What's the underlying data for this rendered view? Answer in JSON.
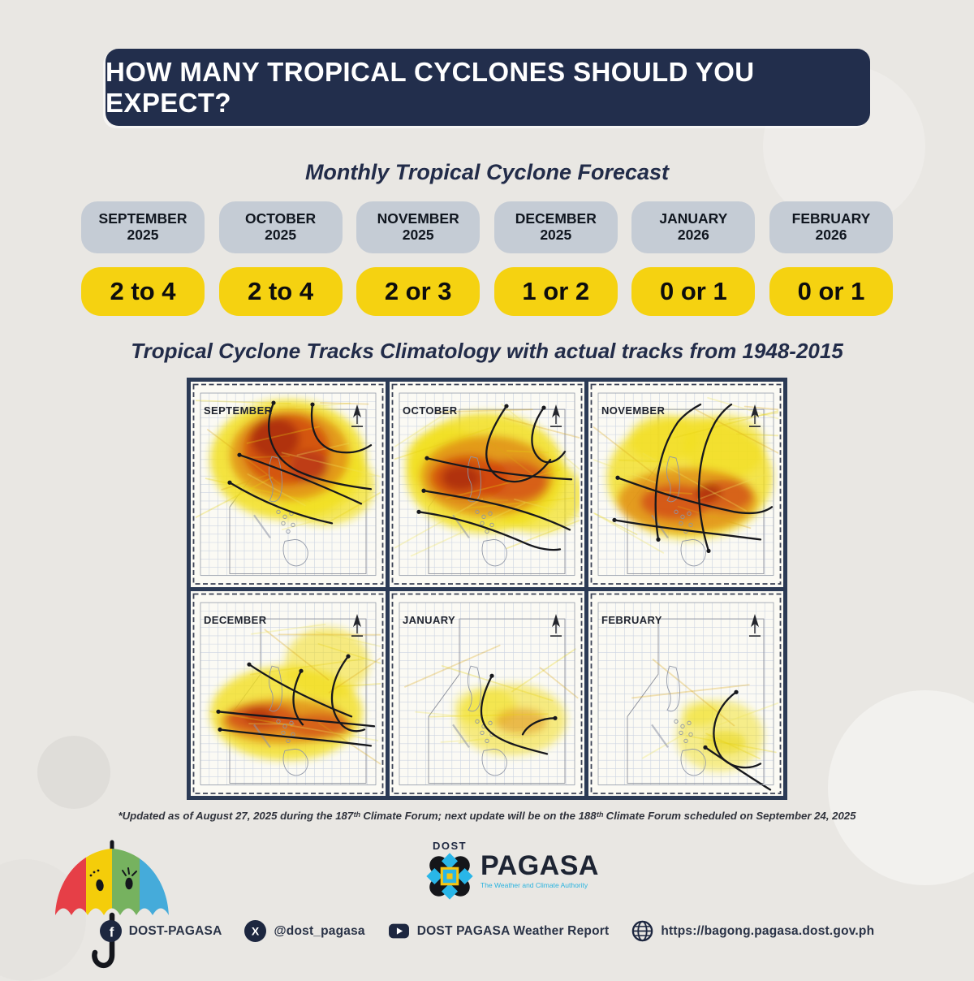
{
  "header": {
    "title": "HOW MANY TROPICAL CYCLONES SHOULD YOU EXPECT?",
    "bg_color": "#222e4c",
    "text_color": "#ffffff"
  },
  "forecast": {
    "subtitle": "Monthly Tropical Cyclone Forecast",
    "month_pill_color": "#c5ccd5",
    "value_pill_color": "#f5d211",
    "months": [
      {
        "month": "SEPTEMBER",
        "year": "2025",
        "value": "2 to 4"
      },
      {
        "month": "OCTOBER",
        "year": "2025",
        "value": "2 to 4"
      },
      {
        "month": "NOVEMBER",
        "year": "2025",
        "value": "2 or 3"
      },
      {
        "month": "DECEMBER",
        "year": "2025",
        "value": "1 or 2"
      },
      {
        "month": "JANUARY",
        "year": "2026",
        "value": "0 or 1"
      },
      {
        "month": "FEBRUARY",
        "year": "2026",
        "value": "0 or 1"
      }
    ]
  },
  "climatology": {
    "title": "Tropical Cyclone Tracks Climatology with actual tracks from 1948-2015",
    "footnote": "*Updated as of August 27, 2025 during the 187ᵗʰ Climate Forum; next update will be on the 188ᵗʰ Climate Forum scheduled on September 24, 2025",
    "frame_color": "#2b3a55",
    "maps": [
      {
        "label": "SEPTEMBER",
        "blobs": [
          [
            120,
            96,
            96,
            74,
            "#f2df1e",
            0.85
          ],
          [
            165,
            128,
            62,
            48,
            "#f2df1e",
            0.7
          ],
          [
            122,
            90,
            74,
            56,
            "#e08a12",
            0.8
          ],
          [
            118,
            84,
            54,
            44,
            "#cf4012",
            0.75
          ],
          [
            104,
            70,
            30,
            26,
            "#a82b0e",
            0.8
          ],
          [
            146,
            104,
            24,
            20,
            "#b53312",
            0.7
          ]
        ],
        "tracks": [
          "M102,26 C88,62 100,94 132,110 C158,122 190,128 222,132",
          "M60,90 C108,106 158,126 210,150",
          "M48,124 C88,148 128,164 174,174",
          "M150,28 C146,58 154,80 180,86 C202,90 216,82 222,78"
        ],
        "streaks": {
          "count": 14,
          "region": [
            125,
            100,
            100,
            80
          ]
        }
      },
      {
        "label": "OCTOBER",
        "blobs": [
          [
            118,
            112,
            98,
            74,
            "#f2df1e",
            0.85
          ],
          [
            70,
            96,
            50,
            40,
            "#f2df1e",
            0.7
          ],
          [
            182,
            140,
            58,
            46,
            "#f2df1e",
            0.7
          ],
          [
            120,
            116,
            82,
            50,
            "#e08a12",
            0.8
          ],
          [
            98,
            118,
            48,
            28,
            "#cf4012",
            0.75
          ],
          [
            150,
            122,
            44,
            26,
            "#cf4012",
            0.65
          ],
          [
            88,
            118,
            24,
            16,
            "#a82b0e",
            0.8
          ]
        ],
        "tracks": [
          "M144,30 C118,68 110,98 132,116 C148,128 176,126 198,96",
          "M46,94 C96,106 150,116 224,120",
          "M42,134 C100,144 160,152 222,182",
          "M36,160 C80,166 120,178 166,198 C184,206 200,208 210,206",
          "M190,32 C174,54 170,80 184,94 C194,104 208,98 216,86"
        ],
        "streaks": {
          "count": 14,
          "region": [
            125,
            110,
            100,
            75
          ]
        }
      },
      {
        "label": "NOVEMBER",
        "blobs": [
          [
            125,
            118,
            102,
            76,
            "#f2df1e",
            0.8
          ],
          [
            92,
            70,
            42,
            30,
            "#f2df1e",
            0.6
          ],
          [
            168,
            80,
            50,
            40,
            "#f2df1e",
            0.6
          ],
          [
            122,
            146,
            86,
            40,
            "#e08a12",
            0.8
          ],
          [
            108,
            148,
            44,
            22,
            "#cf4012",
            0.7
          ],
          [
            168,
            140,
            34,
            20,
            "#cf4012",
            0.6
          ],
          [
            148,
            136,
            16,
            12,
            "#a82b0e",
            0.7
          ]
        ],
        "tracks": [
          "M36,118 C80,134 122,148 180,160 C204,164 218,160 226,154",
          "M32,170 C90,180 150,186 212,194",
          "M86,194 C78,140 84,88 110,50 C118,40 130,32 138,28",
          "M148,208 C130,150 132,94 156,50 C162,40 170,32 176,28"
        ],
        "streaks": {
          "count": 16,
          "region": [
            130,
            110,
            100,
            85
          ]
        }
      },
      {
        "label": "DECEMBER",
        "blobs": [
          [
            118,
            150,
            94,
            58,
            "#f2df1e",
            0.8
          ],
          [
            168,
            88,
            52,
            44,
            "#f2df1e",
            0.55
          ],
          [
            115,
            160,
            78,
            28,
            "#e08a12",
            0.8
          ],
          [
            88,
            156,
            44,
            18,
            "#cf4012",
            0.7
          ],
          [
            158,
            166,
            40,
            16,
            "#cf4012",
            0.6
          ],
          [
            84,
            154,
            18,
            10,
            "#a82b0e",
            0.7
          ]
        ],
        "tracks": [
          "M34,148 C90,154 150,158 226,166",
          "M36,170 C100,178 160,182 222,190",
          "M72,90 C108,114 148,134 198,154",
          "M136,98 C124,122 122,146 138,164",
          "M194,80 C174,106 166,138 184,162 C192,172 204,174 214,170"
        ],
        "streaks": {
          "count": 12,
          "region": [
            140,
            120,
            95,
            85
          ]
        }
      },
      {
        "label": "JANUARY",
        "blobs": [
          [
            150,
            158,
            68,
            44,
            "#f2df1e",
            0.55
          ],
          [
            118,
            142,
            38,
            24,
            "#f2df1e",
            0.45
          ],
          [
            162,
            160,
            32,
            16,
            "#e08a12",
            0.5
          ]
        ],
        "tracks": [
          "M126,104 C114,128 108,150 118,166 C130,184 162,192 194,200",
          "M204,156 C186,156 170,164 164,176"
        ],
        "streaks": {
          "count": 8,
          "region": [
            150,
            150,
            80,
            60
          ]
        }
      },
      {
        "label": "FEBRUARY",
        "blobs": [
          [
            162,
            178,
            54,
            44,
            "#f2df1e",
            0.5
          ],
          [
            138,
            150,
            24,
            16,
            "#f2df1e",
            0.45
          ],
          [
            168,
            186,
            26,
            14,
            "#e8d40a",
            0.5
          ]
        ],
        "tracks": [
          "M182,124 C154,144 146,180 164,204 C176,218 198,220 212,212",
          "M144,192 C174,212 198,228 224,244"
        ],
        "streaks": {
          "count": 6,
          "region": [
            160,
            170,
            70,
            60
          ]
        }
      }
    ]
  },
  "footer": {
    "logo": {
      "dost": "DOST",
      "name": "PAGASA",
      "tagline": "The Weather and Climate Authority"
    },
    "social": [
      {
        "icon": "facebook-icon",
        "label": "DOST-PAGASA"
      },
      {
        "icon": "x-icon",
        "label": "@dost_pagasa"
      },
      {
        "icon": "youtube-icon",
        "label": "DOST PAGASA Weather Report"
      },
      {
        "icon": "globe-icon",
        "label": "https://bagong.pagasa.dost.gov.ph"
      }
    ]
  }
}
